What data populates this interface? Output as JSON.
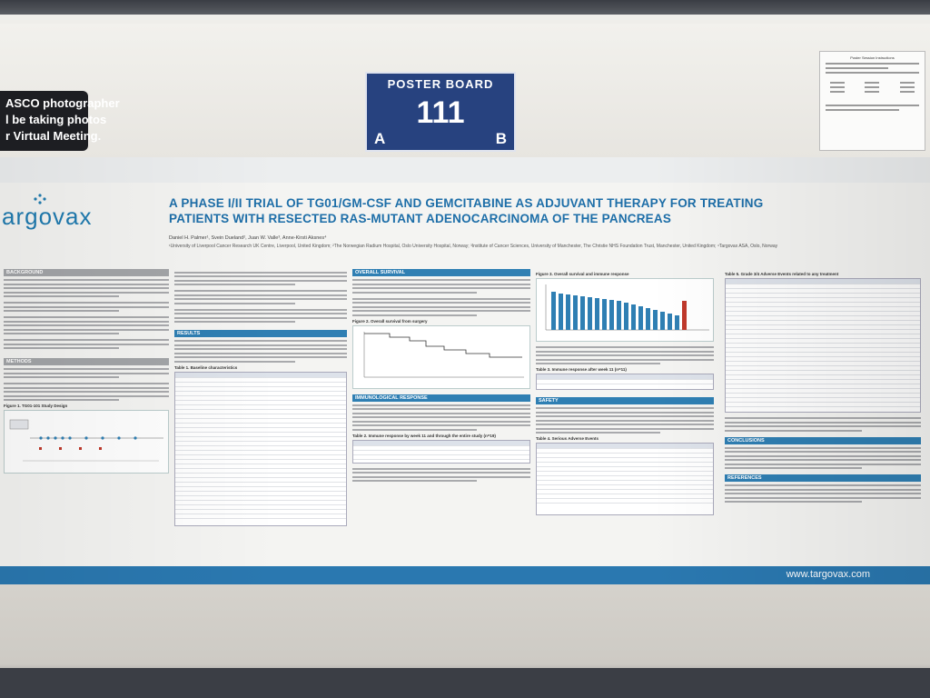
{
  "header": {
    "asco_notice": [
      "ASCO photographer",
      "l be taking photos",
      "r Virtual Meeting."
    ],
    "poster_board": {
      "label": "POSTER BOARD",
      "number": "111",
      "side_a": "A",
      "side_b": "B"
    },
    "instructions_title": "Poster Session Instructions"
  },
  "poster": {
    "logo": "argovax",
    "title_line1": "A PHASE I/II TRIAL OF TG01/GM-CSF AND GEMCITABINE AS ADJUVANT THERAPY FOR TREATING",
    "title_line2": "PATIENTS WITH RESECTED RAS-MUTANT ADENOCARCINOMA OF THE PANCREAS",
    "authors": "Daniel H. Palmer¹, Svein Dueland², Juan W. Valle³, Anne-Kirsti Aksnes⁴",
    "affiliations": "¹University of Liverpool Cancer Research UK Centre, Liverpool, United Kingdom; ²The Norwegian Radium Hospital, Oslo University Hospital, Norway; ³Institute of Cancer Sciences, University of Manchester, The Christie NHS Foundation Trust, Manchester, United Kingdom; ⁴Targovax ASA, Oslo, Norway",
    "sections": {
      "background": "BACKGROUND",
      "methods": "METHODS",
      "results": "RESULTS",
      "overall_survival": "OVERALL SURVIVAL",
      "immunological_response": "IMMUNOLOGICAL RESPONSE",
      "safety": "SAFETY",
      "conclusions": "CONCLUSIONS",
      "references": "REFERENCES"
    },
    "captions": {
      "figure1": "Figure 1. TG01-101 Study Design",
      "table1": "Table 1. Baseline characteristics",
      "figure2": "Figure 2. Overall survival from surgery",
      "table2": "Table 2. Immune response by week 11 and through the entire study (n=19)",
      "figure3": "Figure 3. Overall survival and immune response",
      "table3": "Table 3. Immune response after week 11 (n=11)",
      "table4": "Table 4. Serious Adverse Events",
      "table5": "Table 5. Grade 3/4 Adverse Events related to any treatment"
    },
    "website": "www.targovax.com"
  },
  "colors": {
    "brand_blue": "#2a78b0",
    "title_blue": "#1d6ea8",
    "board_blue": "#27427f"
  }
}
